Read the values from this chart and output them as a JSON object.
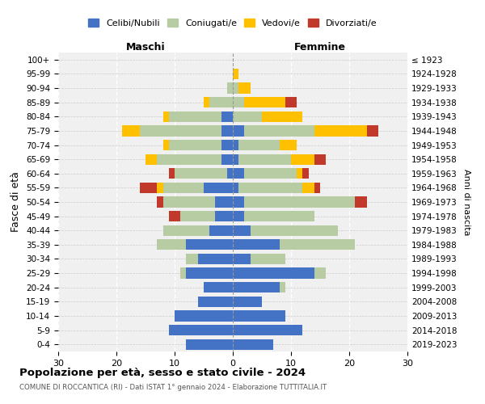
{
  "age_groups": [
    "0-4",
    "5-9",
    "10-14",
    "15-19",
    "20-24",
    "25-29",
    "30-34",
    "35-39",
    "40-44",
    "45-49",
    "50-54",
    "55-59",
    "60-64",
    "65-69",
    "70-74",
    "75-79",
    "80-84",
    "85-89",
    "90-94",
    "95-99",
    "100+"
  ],
  "birth_years": [
    "2019-2023",
    "2014-2018",
    "2009-2013",
    "2004-2008",
    "1999-2003",
    "1994-1998",
    "1989-1993",
    "1984-1988",
    "1979-1983",
    "1974-1978",
    "1969-1973",
    "1964-1968",
    "1959-1963",
    "1954-1958",
    "1949-1953",
    "1944-1948",
    "1939-1943",
    "1934-1938",
    "1929-1933",
    "1924-1928",
    "≤ 1923"
  ],
  "maschi": {
    "celibi": [
      8,
      11,
      10,
      6,
      5,
      8,
      6,
      8,
      4,
      3,
      3,
      5,
      1,
      2,
      2,
      2,
      2,
      0,
      0,
      0,
      0
    ],
    "coniugati": [
      0,
      0,
      0,
      0,
      0,
      1,
      2,
      5,
      8,
      6,
      9,
      7,
      9,
      11,
      9,
      14,
      9,
      4,
      1,
      0,
      0
    ],
    "vedovi": [
      0,
      0,
      0,
      0,
      0,
      0,
      0,
      0,
      0,
      0,
      0,
      1,
      0,
      2,
      1,
      3,
      1,
      1,
      0,
      0,
      0
    ],
    "divorziati": [
      0,
      0,
      0,
      0,
      0,
      0,
      0,
      0,
      0,
      2,
      1,
      3,
      1,
      0,
      0,
      0,
      0,
      0,
      0,
      0,
      0
    ]
  },
  "femmine": {
    "nubili": [
      7,
      12,
      9,
      5,
      8,
      14,
      3,
      8,
      3,
      2,
      2,
      1,
      2,
      1,
      1,
      2,
      0,
      0,
      0,
      0,
      0
    ],
    "coniugate": [
      0,
      0,
      0,
      0,
      1,
      2,
      6,
      13,
      15,
      12,
      19,
      11,
      9,
      9,
      7,
      12,
      5,
      2,
      1,
      0,
      0
    ],
    "vedove": [
      0,
      0,
      0,
      0,
      0,
      0,
      0,
      0,
      0,
      0,
      0,
      2,
      1,
      4,
      3,
      9,
      7,
      7,
      2,
      1,
      0
    ],
    "divorziate": [
      0,
      0,
      0,
      0,
      0,
      0,
      0,
      0,
      0,
      0,
      2,
      1,
      1,
      2,
      0,
      2,
      0,
      2,
      0,
      0,
      0
    ]
  },
  "colors": {
    "celibi_nubili": "#4472c4",
    "coniugati": "#b8cca4",
    "vedovi": "#ffc000",
    "divorziati": "#c0392b"
  },
  "xlim": 30,
  "title": "Popolazione per età, sesso e stato civile - 2024",
  "subtitle": "COMUNE DI ROCCANTICA (RI) - Dati ISTAT 1° gennaio 2024 - Elaborazione TUTTITALIA.IT",
  "ylabel_left": "Fasce di età",
  "ylabel_right": "Anni di nascita",
  "xlabel_maschi": "Maschi",
  "xlabel_femmine": "Femmine",
  "bg_color": "#f0f0f0"
}
